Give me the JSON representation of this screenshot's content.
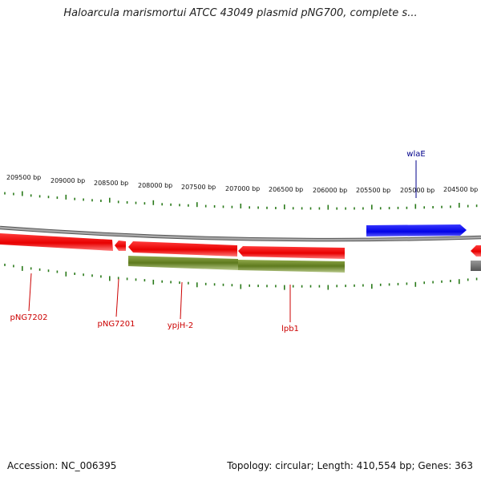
{
  "title": "Haloarcula marismortui ATCC 43049 plasmid pNG700, complete s...",
  "footer": {
    "accession": "Accession: NC_006395",
    "summary": "Topology: circular; Length: 410,554 bp; Genes: 363"
  },
  "scale_labels": [
    "209500 bp",
    "209000 bp",
    "208500 bp",
    "208000 bp",
    "207500 bp",
    "207000 bp",
    "206500 bp",
    "206000 bp",
    "205500 bp",
    "205000 bp",
    "204500 bp"
  ],
  "gene_labels": {
    "wlaE": "wlaE",
    "pNG7202": "pNG7202",
    "pNG7201": "pNG7201",
    "ypjH2": "ypjH-2",
    "lpb1": "lpb1"
  },
  "colors": {
    "forward_gene": "#0000ee",
    "reverse_gene": "#ee0000",
    "rna_feature": "#668822",
    "backbone": "#888888",
    "ticks": "#2a7a1a",
    "reverse_label": "#cc0000",
    "forward_label": "#00008b"
  }
}
